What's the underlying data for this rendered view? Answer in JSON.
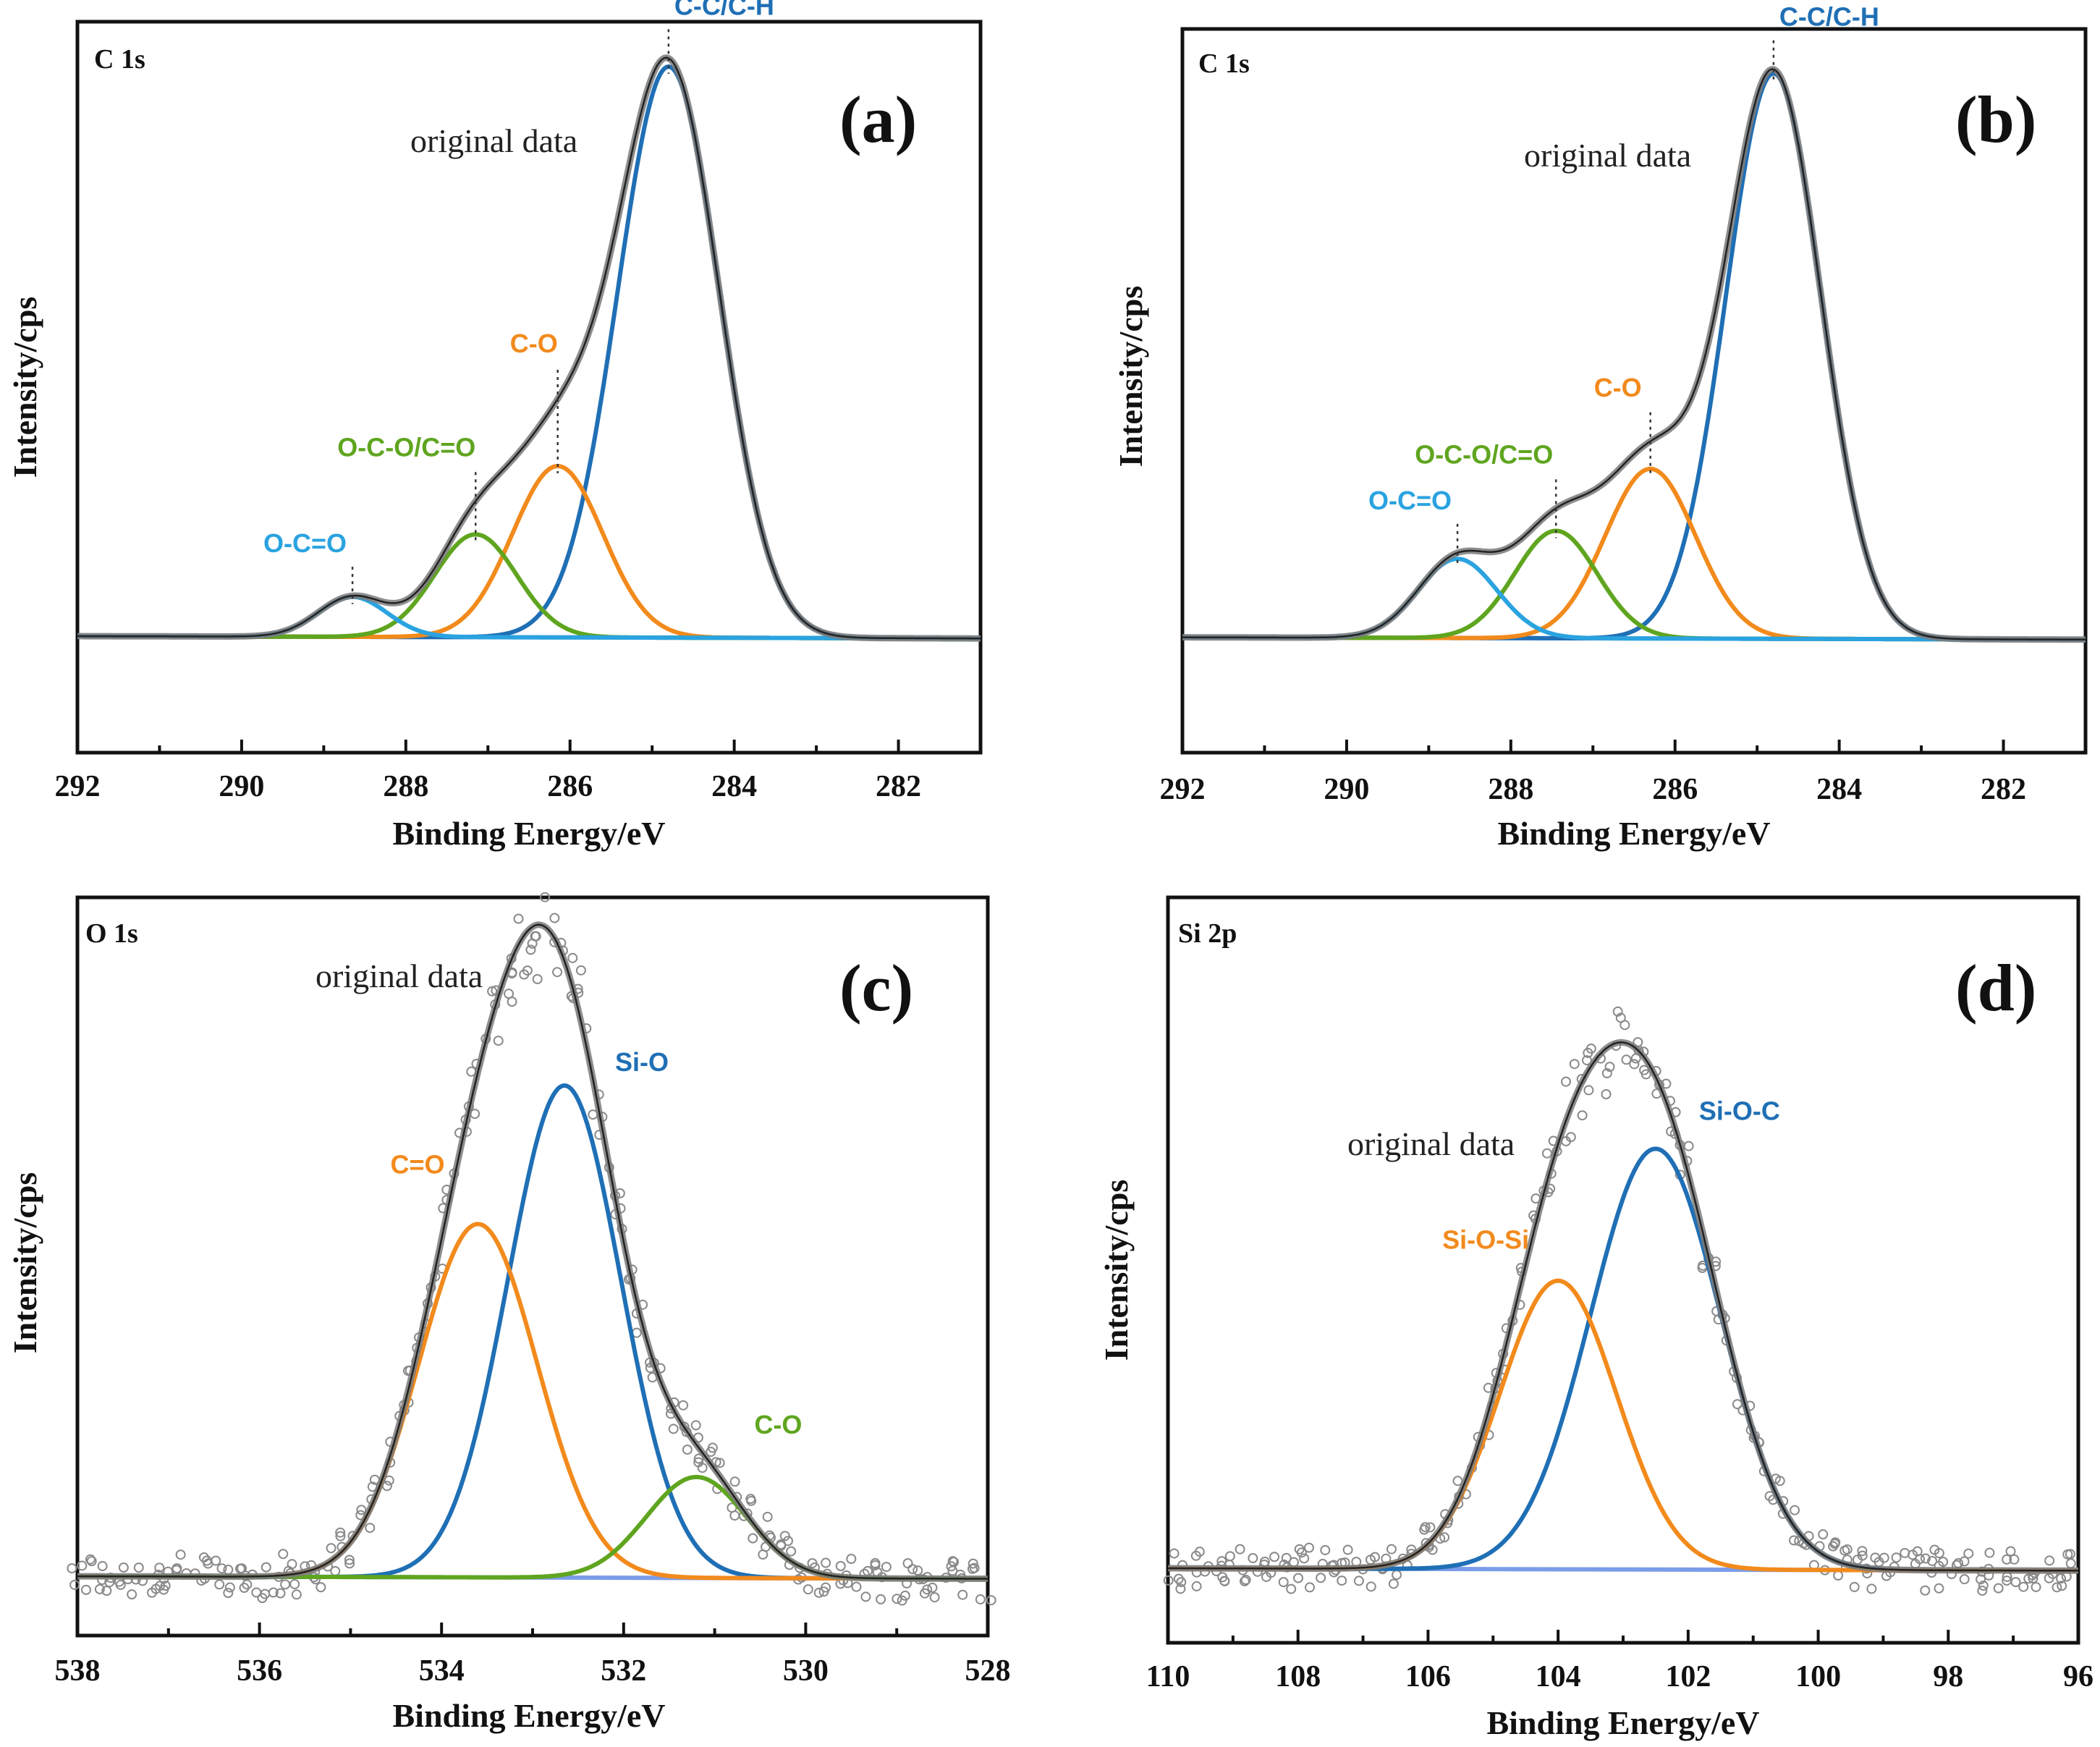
{
  "figure": {
    "background": "#ffffff"
  },
  "colors": {
    "frame": "#111111",
    "envelope": "#7a7a7a",
    "envelope_dark": "#222222",
    "baseline": "#7b9ce8",
    "dots": "#8a8a8a",
    "blue": "#1f6fb5",
    "light_blue": "#2aa3e0",
    "orange": "#f28a1c",
    "green": "#5fa51f"
  },
  "chart_data": [
    {
      "id": "a",
      "type": "line",
      "panel_label": "(a)",
      "corner_label": "C 1s",
      "xlabel": "Binding Energy/eV",
      "ylabel": "Intensity/cps",
      "xlim": [
        292,
        281
      ],
      "ylim": [
        -0.2,
        1.08
      ],
      "xticks": [
        292,
        290,
        288,
        286,
        284,
        282
      ],
      "xtick_labels": [
        "292",
        "290",
        "288",
        "286",
        "284",
        "282"
      ],
      "envelope_label": "original data",
      "dots": false,
      "peaks": [
        {
          "name": "C-C/C-H",
          "center": 284.8,
          "height": 1.0,
          "sigma": 0.62,
          "color": "blue",
          "marker": true
        },
        {
          "name": "C-O",
          "center": 286.15,
          "height": 0.3,
          "sigma": 0.55,
          "color": "orange",
          "marker": true
        },
        {
          "name": "O-C-O/C=O",
          "center": 287.15,
          "height": 0.18,
          "sigma": 0.5,
          "color": "green",
          "marker": true
        },
        {
          "name": "O-C=O",
          "center": 288.65,
          "height": 0.07,
          "sigma": 0.42,
          "color": "light_blue",
          "marker": true
        }
      ]
    },
    {
      "id": "b",
      "type": "line",
      "panel_label": "(b)",
      "corner_label": "C 1s",
      "xlabel": "Binding Energy/eV",
      "ylabel": "Intensity/cps",
      "xlim": [
        292,
        281
      ],
      "ylim": [
        -0.2,
        1.08
      ],
      "xticks": [
        292,
        290,
        288,
        286,
        284,
        282
      ],
      "xtick_labels": [
        "292",
        "290",
        "288",
        "286",
        "284",
        "282"
      ],
      "envelope_label": "original data",
      "dots": false,
      "peaks": [
        {
          "name": "C-C/C-H",
          "center": 284.8,
          "height": 1.0,
          "sigma": 0.58,
          "color": "blue",
          "marker": true
        },
        {
          "name": "C-O",
          "center": 286.3,
          "height": 0.3,
          "sigma": 0.55,
          "color": "orange",
          "marker": true
        },
        {
          "name": "O-C-O/C=O",
          "center": 287.45,
          "height": 0.19,
          "sigma": 0.5,
          "color": "green",
          "marker": true
        },
        {
          "name": "O-C=O",
          "center": 288.65,
          "height": 0.14,
          "sigma": 0.48,
          "color": "light_blue",
          "marker": true
        }
      ]
    },
    {
      "id": "c",
      "type": "line",
      "panel_label": "(c)",
      "corner_label": "O 1s",
      "xlabel": "Binding Energy/eV",
      "ylabel": "Intensity/cps",
      "xlim": [
        538,
        528
      ],
      "ylim": [
        -0.09,
        1.08
      ],
      "xticks": [
        538,
        536,
        534,
        532,
        530,
        528
      ],
      "xtick_labels": [
        "538",
        "536",
        "534",
        "532",
        "530",
        "528"
      ],
      "envelope_label": "original data",
      "dots": true,
      "peaks": [
        {
          "name": "Si-O",
          "center": 532.65,
          "height": 0.78,
          "sigma": 0.62,
          "color": "blue",
          "marker": false
        },
        {
          "name": "C=O",
          "center": 533.6,
          "height": 0.56,
          "sigma": 0.65,
          "color": "orange",
          "marker": false
        },
        {
          "name": "C-O",
          "center": 531.2,
          "height": 0.16,
          "sigma": 0.55,
          "color": "green",
          "marker": false
        }
      ]
    },
    {
      "id": "d",
      "type": "line",
      "panel_label": "(d)",
      "corner_label": "Si 2p",
      "xlabel": "Binding Energy/eV",
      "ylabel": "Intensity/cps",
      "xlim": [
        110,
        96
      ],
      "ylim": [
        -0.12,
        1.12
      ],
      "xticks": [
        110,
        108,
        106,
        104,
        102,
        100,
        98,
        96
      ],
      "xtick_labels": [
        "110",
        "108",
        "106",
        "104",
        "102",
        "100",
        "98",
        "96"
      ],
      "envelope_label": "original data",
      "dots": true,
      "peaks": [
        {
          "name": "Si-O-C",
          "center": 102.5,
          "height": 0.7,
          "sigma": 1.0,
          "color": "blue",
          "marker": false
        },
        {
          "name": "Si-O-Si",
          "center": 104.0,
          "height": 0.48,
          "sigma": 0.9,
          "color": "orange",
          "marker": false
        }
      ]
    }
  ]
}
